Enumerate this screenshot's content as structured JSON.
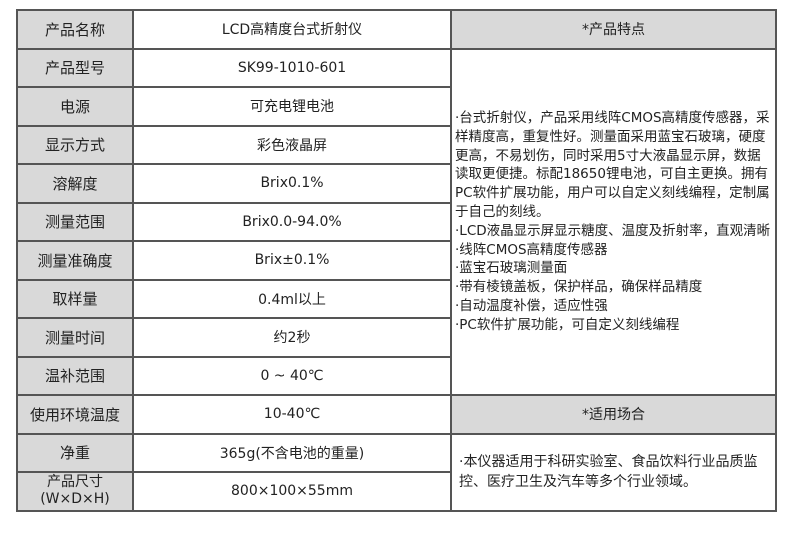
{
  "rows": [
    {
      "label": "产品名称",
      "value": "LCD高精度台式折射仪"
    },
    {
      "label": "产品型号",
      "value": "SK99-1010-601"
    },
    {
      "label": "电源",
      "value": "可充电锂电池"
    },
    {
      "label": "显示方式",
      "value": "彩色液晶屏"
    },
    {
      "label": "溶解度",
      "value": "Brix0.1%"
    },
    {
      "label": "测量范围",
      "value": "Brix0.0-94.0%"
    },
    {
      "label": "测量准确度",
      "value": "Brix±0.1%"
    },
    {
      "label": "取样量",
      "value": "0.4ml以上"
    },
    {
      "label": "测量时间",
      "value": "约2秒"
    },
    {
      "label": "温补范围",
      "value": "0 ~ 40℃"
    },
    {
      "label": "使用环境温度",
      "value": "10-40℃"
    },
    {
      "label": "净重",
      "value": "365g(不含电池的重量)"
    },
    {
      "label": "产品尺寸",
      "label2": "(W×D×H)",
      "value": "800×100×55mm"
    }
  ],
  "features": {
    "title": "*产品特点",
    "items": [
      "·台式折射仪，产品采用线阵CMOS高精度传感器，采样精度高，重复性好。测量面采用蓝宝石玻璃，硬度更高，不易划伤，同时采用5寸大液晶显示屏，数据读取更便捷。标配18650锂电池，可自主更换。拥有PC软件扩展功能，用户可以自定义刻线编程，定制属于自己的刻线。",
      "·LCD液晶显示屏显示糖度、温度及折射率，直观清晰",
      "·线阵CMOS高精度传感器",
      "·蓝宝石玻璃测量面",
      "·带有棱镜盖板，保护样品，确保样品精度",
      "·自动温度补偿，适应性强",
      "·PC软件扩展功能，可自定义刻线编程"
    ]
  },
  "applications": {
    "title": "*适用场合",
    "text": "·本仪器适用于科研实验室、食品饮料行业品质监控、医疗卫生及汽车等多个行业领域。"
  },
  "colors": {
    "header_bg": "#d9d9d9",
    "border": "#555555"
  }
}
